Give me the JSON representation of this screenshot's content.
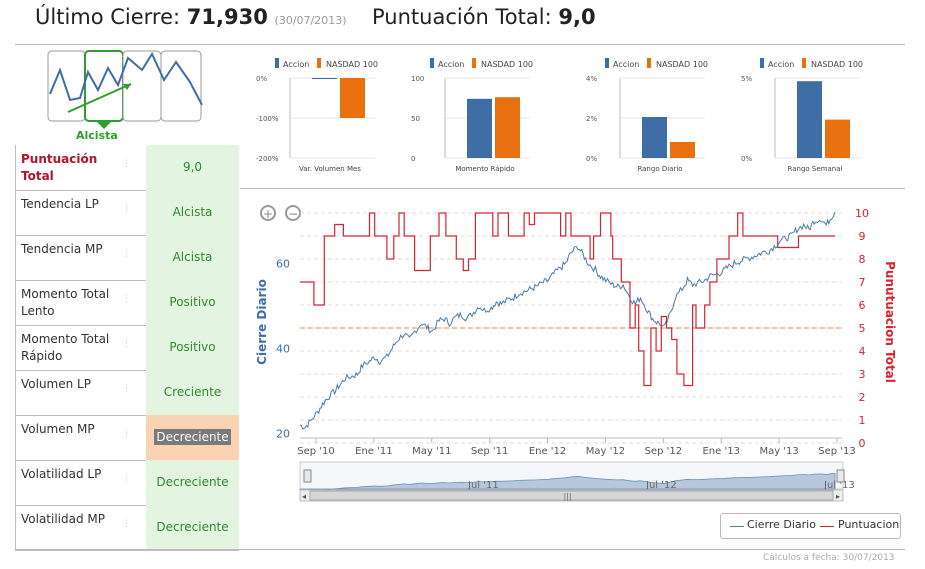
{
  "header": {
    "last_close_label": "Último Cierre:",
    "last_close_value": "71,930",
    "last_close_date": "(30/07/2013)",
    "score_label": "Puntuación Total:",
    "score_value": "9,0"
  },
  "trend_thumbnail": {
    "label": "Alcista",
    "color": "#2e9e2e"
  },
  "indicators": [
    {
      "label": "Puntuación Total",
      "value": "9,0",
      "state": "positive"
    },
    {
      "label": "Tendencia LP",
      "value": "Alcista",
      "state": "positive"
    },
    {
      "label": "Tendencia MP",
      "value": "Alcista",
      "state": "positive"
    },
    {
      "label": "Momento Total Lento",
      "value": "Positivo",
      "state": "positive"
    },
    {
      "label": "Momento Total Rápido",
      "value": "Positivo",
      "state": "positive"
    },
    {
      "label": "Volumen LP",
      "value": "Creciente",
      "state": "positive"
    },
    {
      "label": "Volumen MP",
      "value": "Decreciente",
      "state": "negative"
    },
    {
      "label": "Volatilidad LP",
      "value": "Decreciente",
      "state": "positive"
    },
    {
      "label": "Volatilidad MP",
      "value": "Decreciente",
      "state": "positive"
    }
  ],
  "footer": {
    "text": "Cálculos a fecha: 30/07/2013"
  },
  "colors": {
    "accion": "#3f6ea6",
    "nasdaq": "#e8700e",
    "close": "#4a7aa8",
    "score": "#d9232f"
  },
  "chart_data": [
    {
      "type": "bar",
      "categories": [
        "Var. Volumen Mes"
      ],
      "series": [
        {
          "name": "Accion",
          "values": [
            0
          ]
        },
        {
          "name": "NASDAD 100",
          "values": [
            -100
          ]
        }
      ],
      "yticks": [
        "0%",
        "-100%",
        "-200%"
      ],
      "ylim": [
        -200,
        0
      ]
    },
    {
      "type": "bar",
      "categories": [
        "Momento Rápido"
      ],
      "series": [
        {
          "name": "Accion",
          "values": [
            74
          ]
        },
        {
          "name": "NASDAD 100",
          "values": [
            76
          ]
        }
      ],
      "yticks": [
        "100",
        "50",
        "0"
      ],
      "ylim": [
        0,
        100
      ]
    },
    {
      "type": "bar",
      "categories": [
        "Rango Diario"
      ],
      "series": [
        {
          "name": "Accion",
          "values": [
            2.05
          ]
        },
        {
          "name": "NASDAD 100",
          "values": [
            0.8
          ]
        }
      ],
      "yticks": [
        "4%",
        "2%",
        "0%"
      ],
      "ylim": [
        0,
        4
      ]
    },
    {
      "type": "bar",
      "categories": [
        "Rango Semanal"
      ],
      "series": [
        {
          "name": "Accion",
          "values": [
            4.8
          ]
        },
        {
          "name": "NASDAD 100",
          "values": [
            2.4
          ]
        }
      ],
      "yticks": [
        "5%",
        "0%"
      ],
      "ylim": [
        0,
        5
      ]
    },
    {
      "type": "line",
      "x_tick_labels": [
        "Sep '10",
        "Ene '11",
        "May '11",
        "Sep '11",
        "Ene '12",
        "May '12",
        "Sep '12",
        "Ene '13",
        "May '13",
        "Sep '13"
      ],
      "left_axis": {
        "label": "Cierre Diario",
        "ticks": [
          "20",
          "40",
          "60"
        ],
        "range": [
          19,
          73
        ]
      },
      "right_axis": {
        "label": "Punutuacion Total",
        "ticks": [
          "0",
          "1",
          "2",
          "3",
          "4",
          "5",
          "6",
          "7",
          "8",
          "9",
          "10"
        ],
        "range": [
          0,
          10
        ]
      },
      "series": [
        {
          "name": "Cierre Diario",
          "points": [
            [
              0,
              22
            ],
            [
              0.3,
              21.5
            ],
            [
              0.6,
              23
            ],
            [
              1,
              25
            ],
            [
              1.3,
              27
            ],
            [
              1.6,
              28.5
            ],
            [
              2,
              30
            ],
            [
              2.3,
              31.5
            ],
            [
              2.6,
              33
            ],
            [
              3,
              33.5
            ],
            [
              3.3,
              34
            ],
            [
              3.6,
              36
            ],
            [
              4,
              37
            ],
            [
              4.3,
              38
            ],
            [
              4.6,
              37
            ],
            [
              5,
              38
            ],
            [
              5.3,
              40
            ],
            [
              5.6,
              42
            ],
            [
              6,
              43.5
            ],
            [
              6.3,
              42
            ],
            [
              6.6,
              44
            ],
            [
              7,
              46
            ],
            [
              7.3,
              45
            ],
            [
              7.6,
              44
            ],
            [
              8,
              46.5
            ],
            [
              8.3,
              47
            ],
            [
              8.6,
              46
            ],
            [
              9,
              47.5
            ],
            [
              9.3,
              48
            ],
            [
              9.6,
              47
            ],
            [
              10,
              48.5
            ],
            [
              10.3,
              50
            ],
            [
              10.6,
              49
            ],
            [
              11,
              49.5
            ],
            [
              11.3,
              51
            ],
            [
              11.6,
              50.5
            ],
            [
              12,
              51.5
            ],
            [
              12.3,
              52
            ],
            [
              12.6,
              53
            ],
            [
              13,
              53.5
            ],
            [
              13.3,
              54
            ],
            [
              13.6,
              54.5
            ],
            [
              14,
              55.5
            ],
            [
              14.3,
              56
            ],
            [
              14.6,
              57.5
            ],
            [
              15,
              59
            ],
            [
              15.3,
              60
            ],
            [
              15.6,
              62.5
            ],
            [
              16,
              64
            ],
            [
              16.3,
              62
            ],
            [
              16.6,
              60
            ],
            [
              17,
              58.5
            ],
            [
              17.3,
              57
            ],
            [
              17.6,
              56
            ],
            [
              18,
              55
            ],
            [
              18.3,
              54.5
            ],
            [
              18.6,
              55
            ],
            [
              19,
              52
            ],
            [
              19.3,
              50.5
            ],
            [
              19.6,
              52
            ],
            [
              20,
              49
            ],
            [
              20.3,
              47
            ],
            [
              20.6,
              46
            ],
            [
              21,
              45
            ],
            [
              21.3,
              48
            ],
            [
              21.6,
              52
            ],
            [
              22,
              54
            ],
            [
              22.3,
              56
            ],
            [
              22.6,
              55
            ],
            [
              23,
              55.5
            ],
            [
              23.3,
              56
            ],
            [
              23.6,
              57
            ],
            [
              24,
              57.5
            ],
            [
              24.3,
              58
            ],
            [
              24.6,
              59
            ],
            [
              25,
              60
            ],
            [
              25.3,
              60.5
            ],
            [
              25.6,
              61
            ],
            [
              26,
              61.5
            ],
            [
              26.3,
              62
            ],
            [
              26.6,
              62.5
            ],
            [
              27,
              63
            ],
            [
              27.3,
              64
            ],
            [
              27.6,
              65
            ],
            [
              28,
              66
            ],
            [
              28.3,
              66.5
            ],
            [
              28.6,
              68
            ],
            [
              29,
              69
            ],
            [
              29.3,
              68
            ],
            [
              29.6,
              70
            ],
            [
              30,
              70.5
            ],
            [
              30.3,
              69
            ],
            [
              30.6,
              71
            ],
            [
              30.8,
              72
            ]
          ]
        },
        {
          "name": "Puntuacion",
          "steps": [
            [
              0,
              7
            ],
            [
              0.8,
              7
            ],
            [
              0.8,
              6
            ],
            [
              1.4,
              6
            ],
            [
              1.4,
              9
            ],
            [
              2,
              9
            ],
            [
              2,
              9.5
            ],
            [
              2.5,
              9.5
            ],
            [
              2.5,
              9
            ],
            [
              4,
              9
            ],
            [
              4,
              10
            ],
            [
              4.3,
              10
            ],
            [
              4.3,
              9
            ],
            [
              5,
              9
            ],
            [
              5,
              8
            ],
            [
              5.4,
              8
            ],
            [
              5.4,
              9
            ],
            [
              5.7,
              9
            ],
            [
              5.7,
              10
            ],
            [
              6,
              10
            ],
            [
              6,
              9
            ],
            [
              6.6,
              9
            ],
            [
              6.6,
              7.5
            ],
            [
              7.5,
              7.5
            ],
            [
              7.5,
              9
            ],
            [
              8,
              9
            ],
            [
              8,
              10
            ],
            [
              8.4,
              10
            ],
            [
              8.4,
              9
            ],
            [
              9,
              9
            ],
            [
              9,
              8
            ],
            [
              9.4,
              8
            ],
            [
              9.4,
              7.5
            ],
            [
              9.7,
              7.5
            ],
            [
              9.7,
              8
            ],
            [
              10.1,
              8
            ],
            [
              10.1,
              10
            ],
            [
              11.1,
              10
            ],
            [
              11.1,
              9
            ],
            [
              11.4,
              9
            ],
            [
              11.4,
              10
            ],
            [
              12,
              10
            ],
            [
              12,
              9
            ],
            [
              12.9,
              9
            ],
            [
              12.9,
              10
            ],
            [
              13.2,
              10
            ],
            [
              13.2,
              9.5
            ],
            [
              13.5,
              9.5
            ],
            [
              13.5,
              10
            ],
            [
              15,
              10
            ],
            [
              15,
              9
            ],
            [
              15.3,
              9
            ],
            [
              15.3,
              10
            ],
            [
              15.6,
              10
            ],
            [
              15.6,
              9
            ],
            [
              16.7,
              9
            ],
            [
              16.7,
              8
            ],
            [
              16.9,
              8
            ],
            [
              16.9,
              9
            ],
            [
              17.3,
              9
            ],
            [
              17.3,
              10
            ],
            [
              17.9,
              10
            ],
            [
              17.9,
              9
            ],
            [
              18,
              9
            ],
            [
              18,
              8
            ],
            [
              18.5,
              8
            ],
            [
              18.5,
              7
            ],
            [
              19,
              7
            ],
            [
              19,
              5
            ],
            [
              19.3,
              5
            ],
            [
              19.3,
              6
            ],
            [
              19.5,
              6
            ],
            [
              19.5,
              4
            ],
            [
              19.8,
              4
            ],
            [
              19.8,
              2.5
            ],
            [
              20.2,
              2.5
            ],
            [
              20.2,
              5
            ],
            [
              20.5,
              5
            ],
            [
              20.5,
              4
            ],
            [
              20.8,
              4
            ],
            [
              20.8,
              5.5
            ],
            [
              21.1,
              5.5
            ],
            [
              21.1,
              5
            ],
            [
              21.4,
              5
            ],
            [
              21.4,
              4.5
            ],
            [
              21.7,
              4.5
            ],
            [
              21.7,
              3
            ],
            [
              22.1,
              3
            ],
            [
              22.1,
              2.5
            ],
            [
              22.6,
              2.5
            ],
            [
              22.6,
              6
            ],
            [
              22.8,
              6
            ],
            [
              22.8,
              5
            ],
            [
              23.3,
              5
            ],
            [
              23.3,
              6
            ],
            [
              23.6,
              6
            ],
            [
              23.6,
              7
            ],
            [
              24,
              7
            ],
            [
              24,
              8
            ],
            [
              24.7,
              8
            ],
            [
              24.7,
              9
            ],
            [
              25.2,
              9
            ],
            [
              25.2,
              10
            ],
            [
              25.5,
              10
            ],
            [
              25.5,
              9
            ],
            [
              26,
              9
            ],
            [
              26,
              9
            ],
            [
              27.5,
              9
            ],
            [
              27.5,
              8.5
            ],
            [
              28.7,
              8.5
            ],
            [
              28.7,
              9
            ],
            [
              30.8,
              9
            ]
          ]
        }
      ],
      "reference_line": {
        "score": 5,
        "color": "#e8a070"
      },
      "navigator_ticks": [
        "Jul '11",
        "Jul '12",
        "Jul '13"
      ]
    }
  ],
  "legend": {
    "close_label": "Cierre Diario",
    "score_label": "Puntuacion"
  }
}
